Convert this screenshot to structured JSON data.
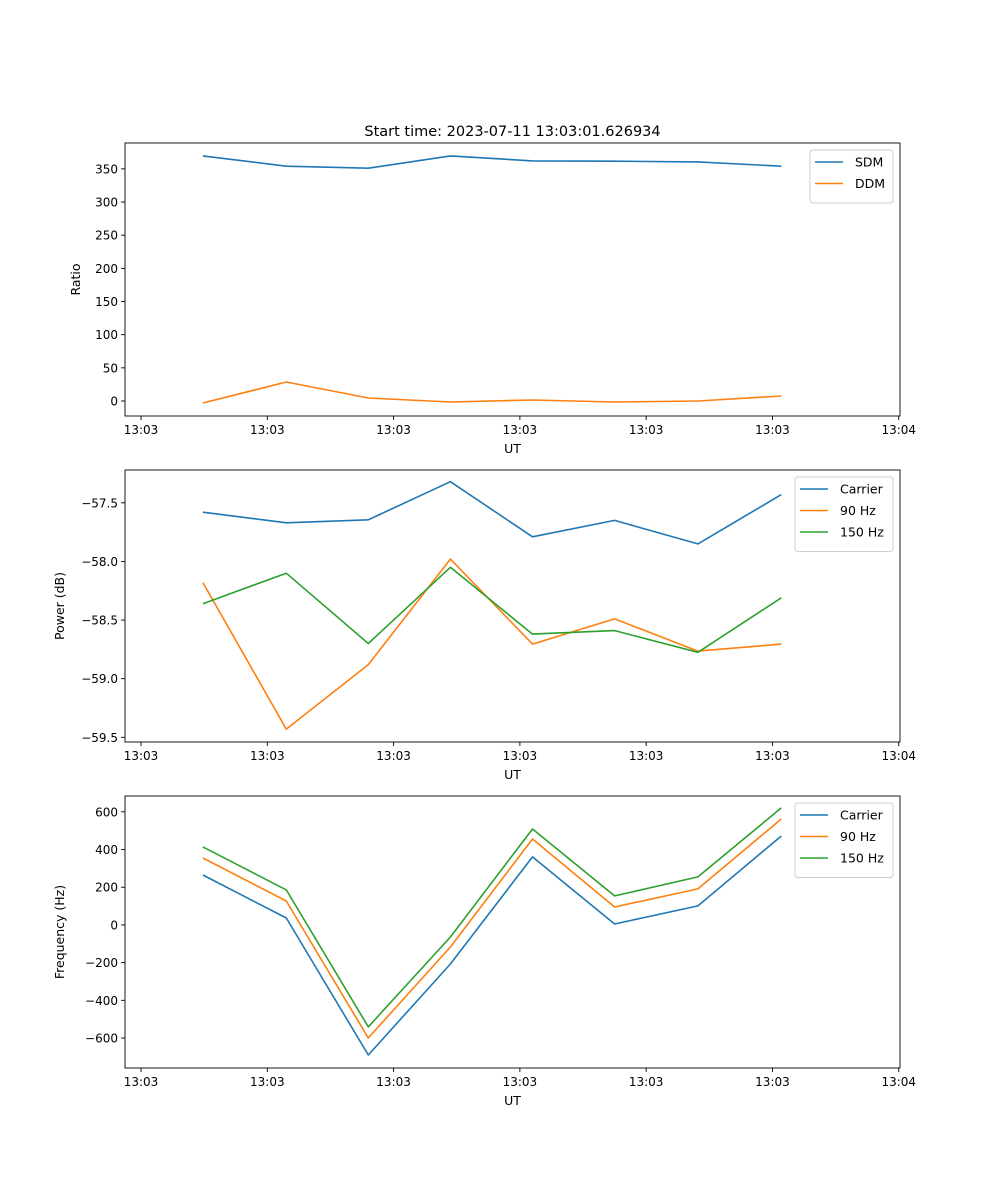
{
  "chart_data": [
    {
      "type": "line",
      "title": "Start time: 2023-07-11 13:03:01.626934",
      "xlabel": "UT",
      "ylabel": "Ratio",
      "x_unit": "seconds after 13:03:00",
      "x": [
        4.9,
        11.5,
        18.0,
        24.5,
        31.0,
        37.5,
        44.1,
        50.7
      ],
      "xlim": [
        -1.27,
        60.1
      ],
      "xticks": [
        0,
        10,
        20,
        30,
        40,
        50,
        60
      ],
      "xticklabels": [
        "13:03",
        "13:03",
        "13:03",
        "13:03",
        "13:03",
        "13:03",
        "13:04"
      ],
      "ylim": [
        -22.6,
        389
      ],
      "yticks": [
        0,
        50,
        100,
        150,
        200,
        250,
        300,
        350
      ],
      "yticklabels": [
        "0",
        "50",
        "100",
        "150",
        "200",
        "250",
        "300",
        "350"
      ],
      "legend_position": "top-right",
      "series": [
        {
          "name": "SDM",
          "color": "#1f77b4",
          "values": [
            369.5,
            354,
            351,
            369.5,
            362,
            361.5,
            360.5,
            354
          ]
        },
        {
          "name": "DDM",
          "color": "#ff7f0e",
          "values": [
            -3,
            28.7,
            4.5,
            -1.5,
            1.5,
            -1.5,
            0,
            7.5
          ]
        }
      ]
    },
    {
      "type": "line",
      "title": "",
      "xlabel": "UT",
      "ylabel": "Power (dB)",
      "x_unit": "seconds after 13:03:00",
      "x": [
        4.9,
        11.5,
        18.0,
        24.5,
        31.0,
        37.5,
        44.1,
        50.7
      ],
      "xlim": [
        -1.27,
        60.1
      ],
      "xticks": [
        0,
        10,
        20,
        30,
        40,
        50,
        60
      ],
      "xticklabels": [
        "13:03",
        "13:03",
        "13:03",
        "13:03",
        "13:03",
        "13:03",
        "13:04"
      ],
      "ylim": [
        -59.54,
        -57.22
      ],
      "yticks": [
        -59.5,
        -59.0,
        -58.5,
        -58.0,
        -57.5
      ],
      "yticklabels": [
        "−59.5",
        "−59.0",
        "−58.5",
        "−58.0",
        "−57.5"
      ],
      "legend_position": "top-right",
      "series": [
        {
          "name": "Carrier",
          "color": "#1f77b4",
          "values": [
            -57.58,
            -57.67,
            -57.645,
            -57.32,
            -57.79,
            -57.65,
            -57.85,
            -57.43
          ]
        },
        {
          "name": "90 Hz",
          "color": "#ff7f0e",
          "values": [
            -58.18,
            -59.43,
            -58.88,
            -57.98,
            -58.705,
            -58.49,
            -58.765,
            -58.705
          ]
        },
        {
          "name": "150 Hz",
          "color": "#2ca02c",
          "values": [
            -58.36,
            -58.1,
            -58.7,
            -58.05,
            -58.62,
            -58.59,
            -58.775,
            -58.31
          ]
        }
      ]
    },
    {
      "type": "line",
      "title": "",
      "xlabel": "UT",
      "ylabel": "Frequency (Hz)",
      "x_unit": "seconds after 13:03:00",
      "x": [
        4.9,
        11.5,
        18.0,
        24.5,
        31.0,
        37.5,
        44.1,
        50.7
      ],
      "xlim": [
        -1.27,
        60.1
      ],
      "xticks": [
        0,
        10,
        20,
        30,
        40,
        50,
        60
      ],
      "xticklabels": [
        "13:03",
        "13:03",
        "13:03",
        "13:03",
        "13:03",
        "13:03",
        "13:04"
      ],
      "ylim": [
        -759,
        684
      ],
      "yticks": [
        -600,
        -400,
        -200,
        0,
        200,
        400,
        600
      ],
      "yticklabels": [
        "−600",
        "−400",
        "−200",
        "0",
        "200",
        "400",
        "600"
      ],
      "legend_position": "top-right",
      "series": [
        {
          "name": "Carrier",
          "color": "#1f77b4",
          "values": [
            265,
            37,
            -690,
            -207,
            361,
            5,
            101,
            472
          ]
        },
        {
          "name": "90 Hz",
          "color": "#ff7f0e",
          "values": [
            355,
            127,
            -600,
            -117,
            456,
            95,
            191,
            562
          ]
        },
        {
          "name": "150 Hz",
          "color": "#2ca02c",
          "values": [
            414,
            186,
            -541,
            -64,
            509,
            154,
            255,
            621
          ]
        }
      ]
    }
  ]
}
